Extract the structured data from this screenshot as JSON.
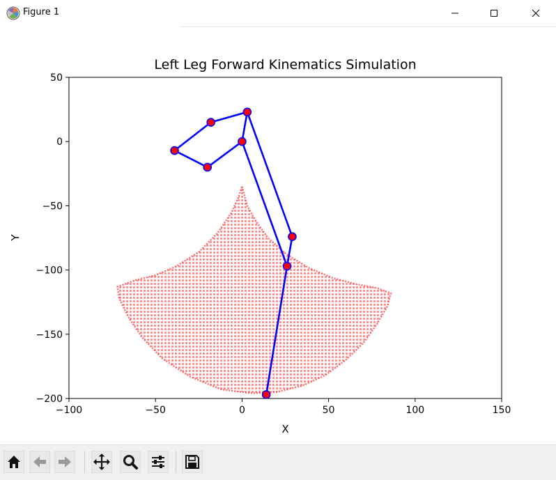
{
  "window": {
    "title": "Figure 1",
    "icons": [
      "matplotlib-icon",
      "minimize-icon",
      "maximize-icon",
      "close-icon"
    ]
  },
  "toolbar": {
    "buttons": [
      "home-icon",
      "back-icon",
      "forward-icon",
      "pan-icon",
      "zoom-icon",
      "configure-subplots-icon",
      "save-icon"
    ]
  },
  "chart_data": {
    "type": "scatter",
    "title": "Left Leg Forward Kinematics Simulation",
    "xlabel": "X",
    "ylabel": "Y",
    "xlim": [
      -100,
      150
    ],
    "ylim": [
      -200,
      50
    ],
    "xticks": [
      -100,
      -50,
      0,
      50,
      100,
      150
    ],
    "yticks": [
      -200,
      -150,
      -100,
      -50,
      0,
      50
    ],
    "xtick_labels": [
      "−100",
      "−50",
      "0",
      "50",
      "100",
      "150"
    ],
    "ytick_labels": [
      "−200",
      "−150",
      "−100",
      "−50",
      "0",
      "50"
    ],
    "grid": false,
    "workspace": {
      "color": "#ff0000",
      "opacity": 0.45,
      "boundary_polygon": [
        [
          0,
          -35
        ],
        [
          3,
          -50
        ],
        [
          8,
          -62
        ],
        [
          15,
          -75
        ],
        [
          25,
          -87
        ],
        [
          38,
          -98
        ],
        [
          52,
          -106
        ],
        [
          66,
          -111
        ],
        [
          78,
          -114
        ],
        [
          86,
          -118
        ],
        [
          84,
          -128
        ],
        [
          78,
          -142
        ],
        [
          70,
          -157
        ],
        [
          60,
          -170
        ],
        [
          48,
          -182
        ],
        [
          35,
          -190
        ],
        [
          20,
          -195
        ],
        [
          6,
          -196
        ],
        [
          -12,
          -193
        ],
        [
          -30,
          -183
        ],
        [
          -46,
          -169
        ],
        [
          -58,
          -152
        ],
        [
          -66,
          -136
        ],
        [
          -71,
          -122
        ],
        [
          -72,
          -113
        ],
        [
          -62,
          -108
        ],
        [
          -50,
          -104
        ],
        [
          -38,
          -97
        ],
        [
          -25,
          -86
        ],
        [
          -14,
          -71
        ],
        [
          -6,
          -55
        ],
        [
          -2,
          -43
        ]
      ]
    },
    "linkage": {
      "color": "#0000ff",
      "joint_color": "#ff0000",
      "joint_edge_color": "#0000ff",
      "joints": [
        [
          0,
          0
        ],
        [
          3,
          23
        ],
        [
          -18,
          15
        ],
        [
          -39,
          -7
        ],
        [
          -20,
          -20
        ],
        [
          29,
          -74
        ],
        [
          26,
          -97
        ],
        [
          14,
          -197
        ]
      ],
      "segments": [
        [
          0,
          1
        ],
        [
          1,
          2
        ],
        [
          2,
          3
        ],
        [
          3,
          4
        ],
        [
          4,
          0
        ],
        [
          0,
          6
        ],
        [
          1,
          5
        ],
        [
          5,
          6
        ],
        [
          6,
          7
        ]
      ]
    }
  }
}
